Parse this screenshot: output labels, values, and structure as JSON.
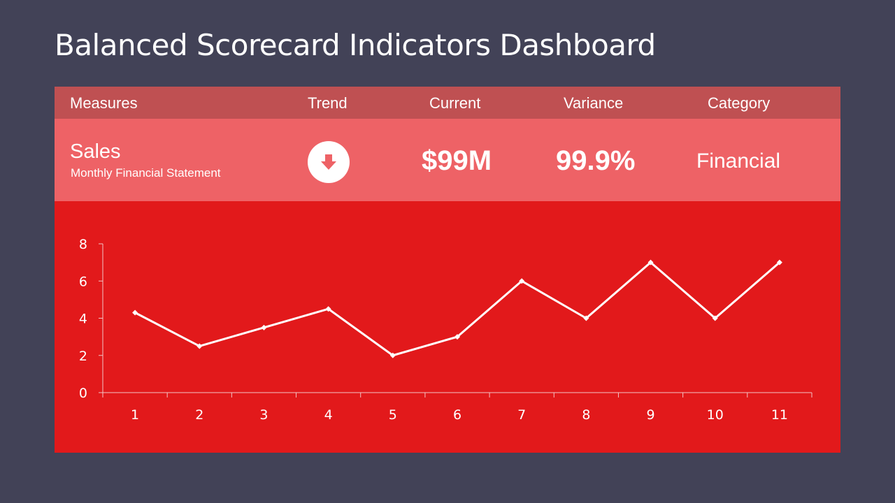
{
  "page": {
    "title": "Balanced Scorecard Indicators Dashboard"
  },
  "table": {
    "headers": [
      "Measures",
      "Trend",
      "Current",
      "Variance",
      "Category"
    ],
    "row": {
      "measure": "Sales",
      "subtitle": "Monthly Financial Statement",
      "trend_icon": "arrow-down-circle-icon",
      "current": "$99M",
      "variance": "99.9%",
      "category": "Financial"
    }
  },
  "colors": {
    "background": "#424257",
    "header": "#bf5052",
    "row": "#ee6266",
    "chart_bg": "#e2191b",
    "line": "#ffffff"
  },
  "chart_data": {
    "type": "line",
    "title": "",
    "xlabel": "",
    "ylabel": "",
    "categories": [
      "1",
      "2",
      "3",
      "4",
      "5",
      "6",
      "7",
      "8",
      "9",
      "10",
      "11"
    ],
    "series": [
      {
        "name": "Sales",
        "values": [
          4.3,
          2.5,
          3.5,
          4.5,
          2.0,
          3.0,
          6.0,
          4.0,
          7.0,
          4.0,
          7.0
        ]
      }
    ],
    "yticks": [
      0,
      2,
      4,
      6,
      8
    ],
    "ylim": [
      0,
      8
    ],
    "grid": false,
    "legend": "none",
    "markers": "diamond"
  }
}
